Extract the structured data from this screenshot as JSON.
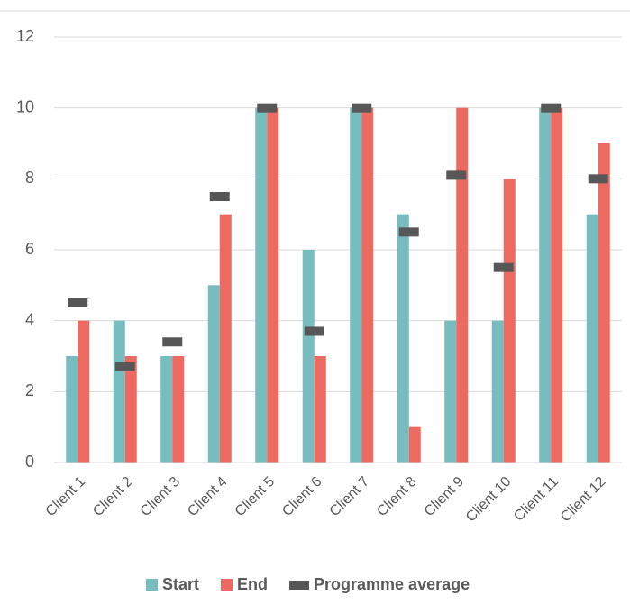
{
  "chart_data": {
    "type": "bar",
    "categories": [
      "Client 1",
      "Client 2",
      "Client 3",
      "Client 4",
      "Client 5",
      "Client 6",
      "Client 7",
      "Client 8",
      "Client 9",
      "Client 10",
      "Client 11",
      "Client 12"
    ],
    "series": [
      {
        "name": "Start",
        "color": "#77bcbf",
        "type": "bar",
        "values": [
          3,
          4,
          3,
          5,
          10,
          6,
          10,
          7,
          4,
          4,
          10,
          7
        ]
      },
      {
        "name": "End",
        "color": "#ec6a60",
        "type": "bar",
        "values": [
          4,
          3,
          3,
          7,
          10,
          3,
          10,
          1,
          10,
          8,
          10,
          9
        ]
      },
      {
        "name": "Programme average",
        "color": "#575757",
        "type": "marker",
        "values": [
          4.5,
          2.7,
          3.4,
          7.5,
          10,
          3.7,
          10,
          6.5,
          8.1,
          5.5,
          10,
          8
        ]
      }
    ],
    "ylim": [
      0,
      12
    ],
    "yticks": [
      0,
      2,
      4,
      6,
      8,
      10,
      12
    ],
    "grid": true,
    "legend": "bottom"
  }
}
